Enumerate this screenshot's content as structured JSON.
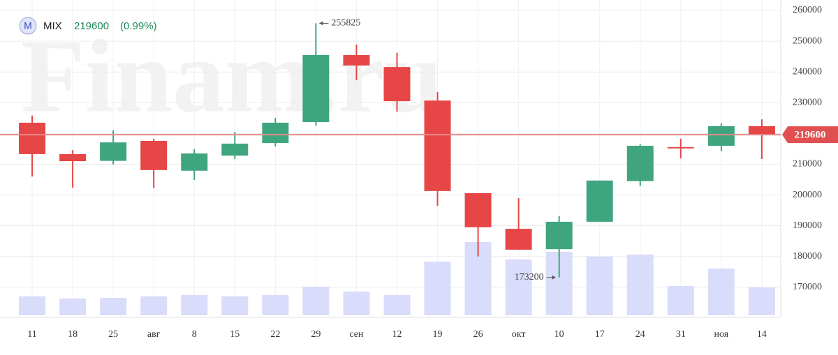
{
  "chart_data": {
    "type": "candlestick",
    "symbol_icon": "M",
    "symbol": "MIX",
    "last_price": 219600,
    "change_label": "(0.99%)",
    "watermark": "Finam.ru",
    "categories": [
      "11",
      "18",
      "25",
      "авг",
      "8",
      "15",
      "22",
      "29",
      "сен",
      "12",
      "19",
      "26",
      "окт",
      "10",
      "17",
      "24",
      "31",
      "ноя",
      "14"
    ],
    "open": [
      223500,
      213300,
      211100,
      217600,
      207900,
      212800,
      216900,
      223700,
      245500,
      241600,
      230700,
      200600,
      189000,
      182400,
      191300,
      204500,
      215600,
      216000,
      222400
    ],
    "high": [
      225800,
      214600,
      221000,
      218300,
      214900,
      220500,
      225100,
      255825,
      248900,
      246200,
      233500,
      200600,
      199000,
      193100,
      204700,
      216500,
      218300,
      223300,
      224600
    ],
    "low": [
      206000,
      202400,
      209900,
      202200,
      204900,
      211700,
      215800,
      222600,
      237300,
      227100,
      196500,
      180000,
      182200,
      173200,
      191300,
      202900,
      211900,
      214200,
      211700
    ],
    "close": [
      213300,
      211000,
      217100,
      208100,
      213500,
      216700,
      223500,
      245500,
      242100,
      230500,
      201300,
      189500,
      182200,
      191300,
      204700,
      216000,
      215600,
      222400,
      219600
    ],
    "volume": [
      27,
      24,
      25,
      27,
      29,
      27,
      29,
      41,
      34,
      29,
      77,
      105,
      80,
      91,
      84,
      87,
      42,
      67,
      40
    ],
    "up_color": "#3fa57f",
    "down_color": "#e64646",
    "volume_color": "#d9ddfb",
    "ylim": [
      160900,
      263400
    ],
    "yticks": [
      170000,
      180000,
      190000,
      200000,
      210000,
      220000,
      230000,
      240000,
      250000,
      260000
    ],
    "grid": true
  }
}
